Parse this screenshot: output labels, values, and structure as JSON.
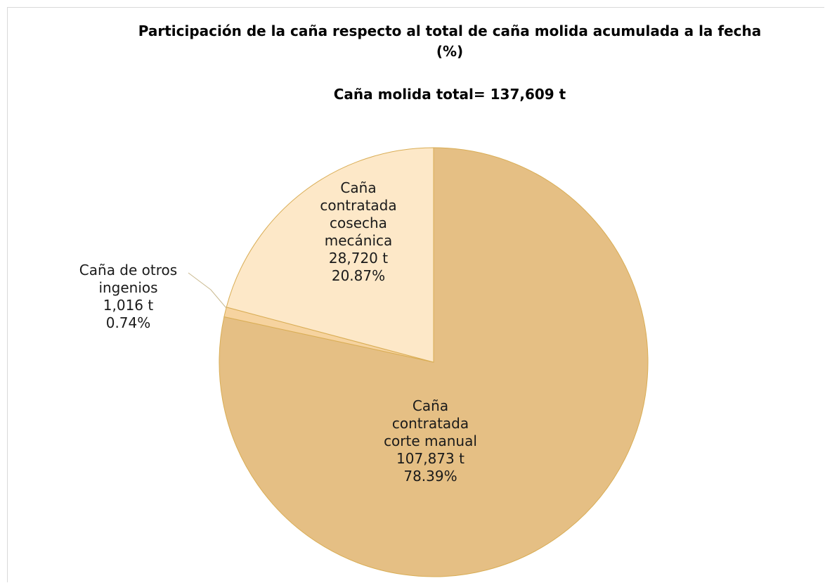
{
  "chart_data": {
    "type": "pie",
    "title": "Participación de la caña respecto al total de caña molida acumulada a la fecha (%)",
    "subtitle": "Caña molida total= 137,609 t",
    "categories": [
      "Caña contratada corte manual",
      "Caña de otros ingenios",
      "Caña contratada cosecha mecánica"
    ],
    "values": [
      78.39,
      0.74,
      20.87
    ],
    "value_labels": [
      "78.39%",
      "0.74%",
      "20.87%"
    ],
    "amount_labels": [
      "107,873 t",
      "1,016 t",
      "28,720 t"
    ],
    "colors": [
      "#e5bf84",
      "#f6d39f",
      "#fde8c8"
    ]
  }
}
